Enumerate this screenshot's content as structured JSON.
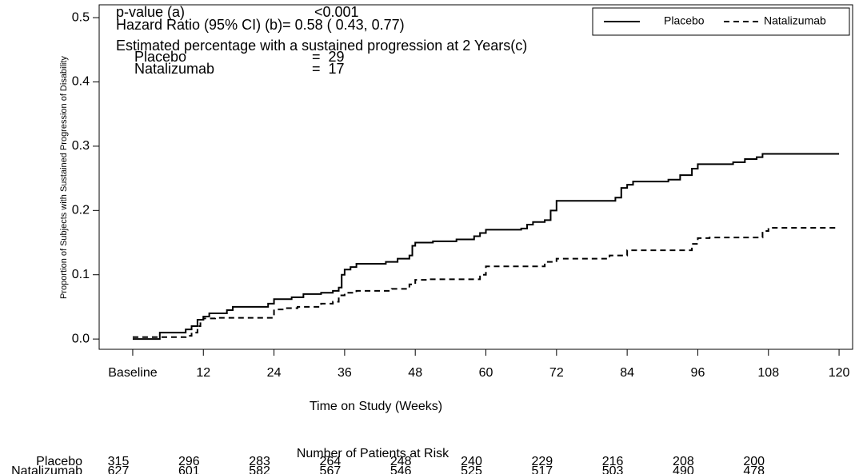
{
  "chart_data": {
    "type": "step",
    "y_label": "Proportion of Subjects with Sustained Progression of Disability",
    "x_label": "Time on Study (Weeks)",
    "annotations": [
      "p-value (a)",
      "<0.001",
      "Hazard Ratio (95% CI) (b)=  0.58 ( 0.43,  0.77)",
      "Estimated percentage with a sustained progression at 2 Years(c)",
      "Placebo",
      "=  29",
      "Natalizumab",
      "=  17"
    ],
    "xlim": [
      -5.7,
      122.3
    ],
    "ylim": [
      -0.016,
      0.52
    ],
    "xticks": [
      {
        "value": 0,
        "label": "Baseline"
      },
      12,
      24,
      36,
      48,
      60,
      72,
      84,
      96,
      108,
      120
    ],
    "yticks": [
      {
        "value": 0,
        "label": "0.0"
      },
      0.1,
      0.2,
      0.3,
      0.4,
      0.5
    ],
    "legend": "top-right",
    "series": [
      {
        "name": "Placebo",
        "color": "#000000",
        "dash": "solid",
        "x": [
          0,
          4.6,
          9,
          10,
          11,
          12,
          13,
          16,
          17,
          23,
          24,
          27,
          29,
          32,
          34,
          35,
          35.5,
          36,
          37,
          38,
          43,
          45,
          47,
          47.5,
          48,
          51,
          55,
          58,
          59,
          60,
          66,
          67,
          68,
          70,
          71,
          72,
          82,
          83,
          84,
          85,
          91,
          93,
          95,
          96,
          102,
          104,
          106,
          107,
          120
        ],
        "values": [
          0,
          0.01,
          0.015,
          0.02,
          0.03,
          0.035,
          0.04,
          0.045,
          0.05,
          0.055,
          0.062,
          0.065,
          0.07,
          0.072,
          0.075,
          0.08,
          0.1,
          0.108,
          0.112,
          0.117,
          0.12,
          0.125,
          0.13,
          0.145,
          0.15,
          0.152,
          0.155,
          0.16,
          0.165,
          0.17,
          0.172,
          0.178,
          0.182,
          0.185,
          0.2,
          0.215,
          0.22,
          0.235,
          0.24,
          0.245,
          0.248,
          0.255,
          0.265,
          0.272,
          0.275,
          0.28,
          0.283,
          0.288,
          0.288
        ]
      },
      {
        "name": "Natalizumab",
        "color": "#000000",
        "dash": "dashed",
        "x": [
          0,
          7,
          9,
          10,
          11,
          11.5,
          12,
          14,
          24,
          26,
          28,
          32,
          34,
          35,
          36,
          38,
          44,
          47,
          48,
          50,
          59,
          60,
          70,
          72,
          81,
          84,
          95,
          96,
          98,
          107,
          108,
          120
        ],
        "values": [
          0.003,
          0.003,
          0.005,
          0.01,
          0.02,
          0.03,
          0.032,
          0.033,
          0.046,
          0.048,
          0.05,
          0.055,
          0.058,
          0.068,
          0.072,
          0.075,
          0.078,
          0.085,
          0.092,
          0.093,
          0.1,
          0.113,
          0.12,
          0.125,
          0.13,
          0.138,
          0.148,
          0.157,
          0.158,
          0.168,
          0.173,
          0.173
        ]
      }
    ],
    "risk_table": {
      "title": "Number of Patients at Risk",
      "rows": [
        {
          "label": "Placebo",
          "values": [
            315,
            296,
            283,
            264,
            248,
            240,
            229,
            216,
            208,
            200
          ]
        },
        {
          "label": "Natalizumab",
          "values": [
            627,
            601,
            582,
            567,
            546,
            525,
            517,
            503,
            490,
            478
          ]
        }
      ]
    }
  }
}
